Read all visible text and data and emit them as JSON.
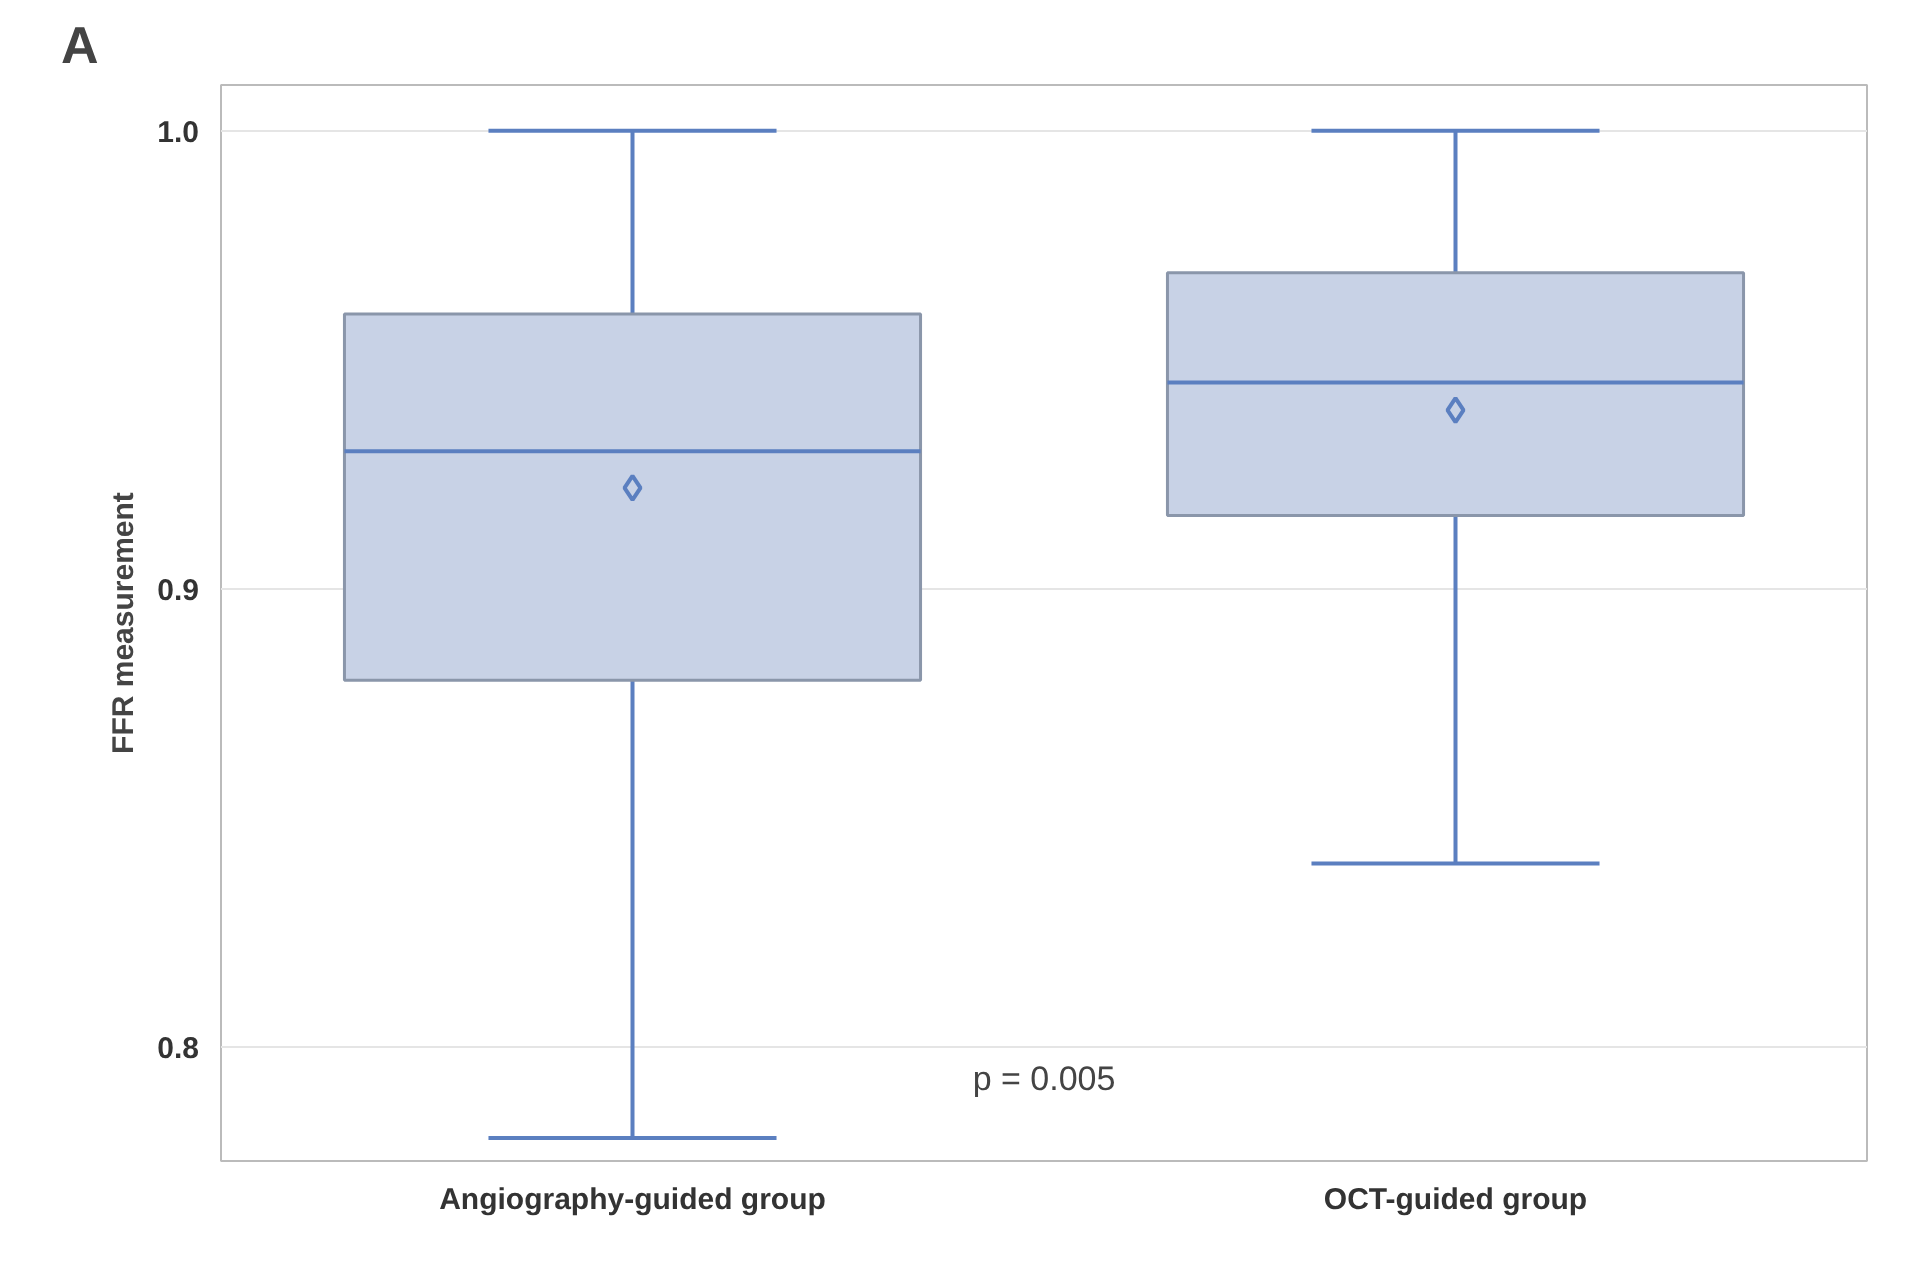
{
  "chart_data": {
    "type": "box",
    "ylabel": "FFR measurement",
    "categories": [
      "Angiography-guided group",
      "OCT-guided group"
    ],
    "series": [
      {
        "color": "#c8d2e6",
        "boxes": [
          {
            "low": 0.78,
            "q1": 0.88,
            "median": 0.93,
            "q3": 0.96,
            "high": 1.0,
            "mean": 0.922
          },
          {
            "low": 0.84,
            "q1": 0.916,
            "median": 0.945,
            "q3": 0.969,
            "high": 1.0,
            "mean": 0.939
          }
        ]
      }
    ],
    "ylim": [
      0.775,
      1.01
    ],
    "yticks": [
      {
        "value": 0.8,
        "label": "0.8"
      },
      {
        "value": 0.9,
        "label": "0.9"
      },
      {
        "value": 1.0,
        "label": "1.0"
      }
    ],
    "grid": "y",
    "marker": "diamond",
    "annotations": [
      "A",
      "p = 0.005"
    ]
  }
}
